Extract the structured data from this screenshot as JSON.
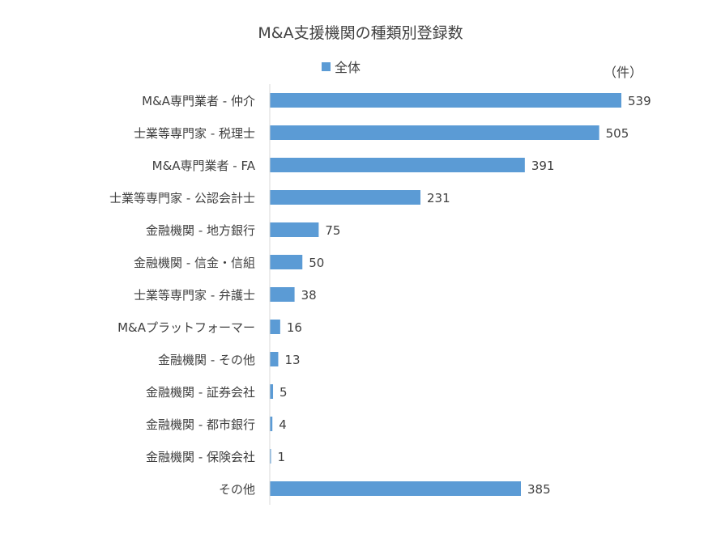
{
  "chart_data": {
    "type": "bar",
    "orientation": "horizontal",
    "title": "M&A支援機関の種類別登録数",
    "unit": "（件）",
    "legend_position": "top",
    "grid": false,
    "color": "#5b9bd5",
    "series": [
      {
        "name": "全体",
        "values": [
          539,
          505,
          391,
          231,
          75,
          50,
          38,
          16,
          13,
          5,
          4,
          1,
          385
        ]
      }
    ],
    "categories": [
      "M&A専門業者 - 仲介",
      "士業等専門家 - 税理士",
      "M&A専門業者 - FA",
      "士業等専門家 - 公認会計士",
      "金融機関 - 地方銀行",
      "金融機関 - 信金・信組",
      "士業等専門家 - 弁護士",
      "M&Aプラットフォーマー",
      "金融機関 - その他",
      "金融機関 - 証券会社",
      "金融機関 - 都市銀行",
      "金融機関 - 保険会社",
      "その他"
    ],
    "xlim": [
      0,
      539
    ]
  }
}
